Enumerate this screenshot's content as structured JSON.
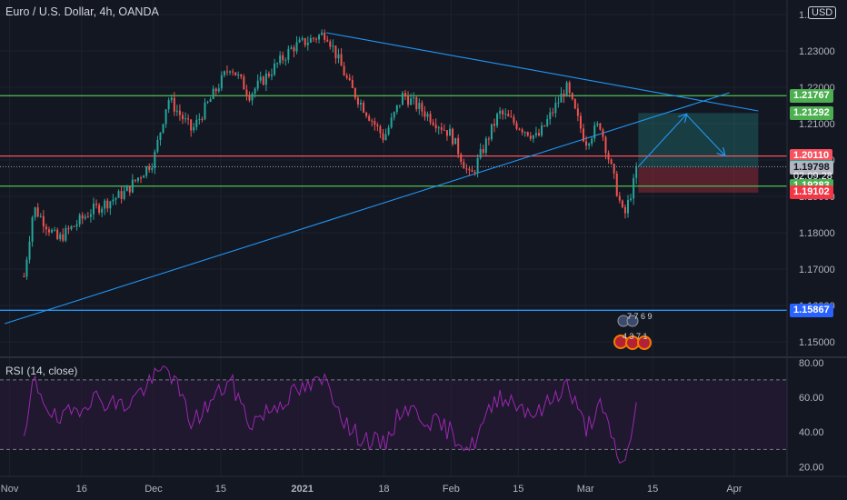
{
  "header": {
    "title": "Euro / U.S. Dollar, 4h, OANDA",
    "currency": "USD"
  },
  "rsi": {
    "label": "RSI (14, close)",
    "levels": [
      70,
      30
    ],
    "ticks": [
      "80.00",
      "60.00",
      "40.00",
      "20.00"
    ],
    "range": [
      15,
      82
    ]
  },
  "price_tags": [
    {
      "price": 1.21767,
      "text": "1.21767",
      "style": "green",
      "name": "resistance-level-tag"
    },
    {
      "price": 1.21292,
      "text": "1.21292",
      "style": "green",
      "name": "target-price-tag"
    },
    {
      "price": 1.2011,
      "text": "1.20110",
      "style": "pink",
      "name": "level-1-20110-tag"
    },
    {
      "price": 1.19816,
      "text": "1.19816",
      "style": "teal",
      "name": "current-price-tag"
    },
    {
      "price": 1.19798,
      "text": "1.19798",
      "style": "gray",
      "name": "entry-price-tag"
    },
    {
      "price": 1.19283,
      "text": "1.19283",
      "style": "green",
      "name": "support-level-tag"
    },
    {
      "price": 1.19102,
      "text": "1.19102",
      "style": "red",
      "name": "stop-price-tag"
    },
    {
      "price": 1.15867,
      "text": "1.15867",
      "style": "blue",
      "name": "blue-level-tag"
    }
  ],
  "countdown": "02:09:28",
  "events": {
    "top": "7 7 6 9",
    "bottom": "4 3 7 1"
  },
  "colors": {
    "background": "#131722",
    "grid": "#1e222d",
    "up_candle": "#26a69a",
    "down_candle": "#ef5350",
    "green_line": "#4caf50",
    "pink_line": "#f7525f",
    "blue_line": "#2196f3",
    "rsi_line": "#9c27b0"
  },
  "chart_data": {
    "type": "candlestick",
    "symbol": "EURUSD",
    "timeframe": "4h",
    "y_ticks": [
      "1.24000",
      "1.23000",
      "1.22000",
      "1.21000",
      "1.20000",
      "1.19000",
      "1.18000",
      "1.17000",
      "1.16000",
      "1.15000"
    ],
    "ylim": [
      1.146,
      1.244
    ],
    "x_ticks": [
      "Nov",
      "16",
      "Dec",
      "15",
      "2021",
      "18",
      "Feb",
      "15",
      "Mar",
      "15",
      "Apr"
    ],
    "price_path": [
      {
        "date": "2020-11-04",
        "price": 1.168
      },
      {
        "date": "2020-11-06",
        "price": 1.187
      },
      {
        "date": "2020-11-11",
        "price": 1.178
      },
      {
        "date": "2020-11-18",
        "price": 1.186
      },
      {
        "date": "2020-11-25",
        "price": 1.191
      },
      {
        "date": "2020-12-01",
        "price": 1.2
      },
      {
        "date": "2020-12-04",
        "price": 1.217
      },
      {
        "date": "2020-12-09",
        "price": 1.208
      },
      {
        "date": "2020-12-17",
        "price": 1.226
      },
      {
        "date": "2020-12-21",
        "price": 1.218
      },
      {
        "date": "2020-12-30",
        "price": 1.231
      },
      {
        "date": "2021-01-06",
        "price": 1.235
      },
      {
        "date": "2021-01-11",
        "price": 1.22
      },
      {
        "date": "2021-01-18",
        "price": 1.206
      },
      {
        "date": "2021-01-22",
        "price": 1.218
      },
      {
        "date": "2021-02-01",
        "price": 1.207
      },
      {
        "date": "2021-02-05",
        "price": 1.195
      },
      {
        "date": "2021-02-11",
        "price": 1.213
      },
      {
        "date": "2021-02-19",
        "price": 1.206
      },
      {
        "date": "2021-02-25",
        "price": 1.22
      },
      {
        "date": "2021-03-01",
        "price": 1.205
      },
      {
        "date": "2021-03-04",
        "price": 1.21
      },
      {
        "date": "2021-03-09",
        "price": 1.184
      },
      {
        "date": "2021-03-12",
        "price": 1.19816
      }
    ],
    "horizontal_levels": [
      {
        "price": 1.21767,
        "color": "#4caf50"
      },
      {
        "price": 1.2011,
        "color": "#f7525f"
      },
      {
        "price": 1.19283,
        "color": "#4caf50"
      },
      {
        "price": 1.15867,
        "color": "#2196f3"
      }
    ],
    "trendlines": [
      {
        "from": {
          "date": "2020-10-31",
          "price": 1.155
        },
        "to": {
          "date": "2021-03-31",
          "price": 1.2185
        }
      },
      {
        "from": {
          "date": "2021-01-06",
          "price": 1.235
        },
        "to": {
          "date": "2021-04-06",
          "price": 1.2135
        }
      }
    ],
    "projection": [
      {
        "date": "2021-03-12",
        "price": 1.19816
      },
      {
        "date": "2021-03-22",
        "price": 1.2125
      },
      {
        "date": "2021-03-30",
        "price": 1.2013
      }
    ],
    "position": {
      "start_date": "2021-03-12",
      "end_date": "2021-04-06",
      "entry": 1.19798,
      "target": 1.21292,
      "stop": 1.19102
    },
    "rsi_path": [
      {
        "date": "2020-11-04",
        "value": 32
      },
      {
        "date": "2020-11-06",
        "value": 70
      },
      {
        "date": "2020-11-11",
        "value": 45
      },
      {
        "date": "2020-11-18",
        "value": 60
      },
      {
        "date": "2020-11-25",
        "value": 55
      },
      {
        "date": "2020-12-04",
        "value": 78
      },
      {
        "date": "2020-12-09",
        "value": 45
      },
      {
        "date": "2020-12-17",
        "value": 70
      },
      {
        "date": "2020-12-21",
        "value": 45
      },
      {
        "date": "2020-12-30",
        "value": 62
      },
      {
        "date": "2021-01-06",
        "value": 70
      },
      {
        "date": "2021-01-11",
        "value": 40
      },
      {
        "date": "2021-01-18",
        "value": 32
      },
      {
        "date": "2021-01-22",
        "value": 55
      },
      {
        "date": "2021-02-01",
        "value": 40
      },
      {
        "date": "2021-02-05",
        "value": 30
      },
      {
        "date": "2021-02-11",
        "value": 62
      },
      {
        "date": "2021-02-19",
        "value": 50
      },
      {
        "date": "2021-02-25",
        "value": 68
      },
      {
        "date": "2021-03-01",
        "value": 42
      },
      {
        "date": "2021-03-04",
        "value": 55
      },
      {
        "date": "2021-03-09",
        "value": 18
      },
      {
        "date": "2021-03-12",
        "value": 62
      }
    ]
  }
}
